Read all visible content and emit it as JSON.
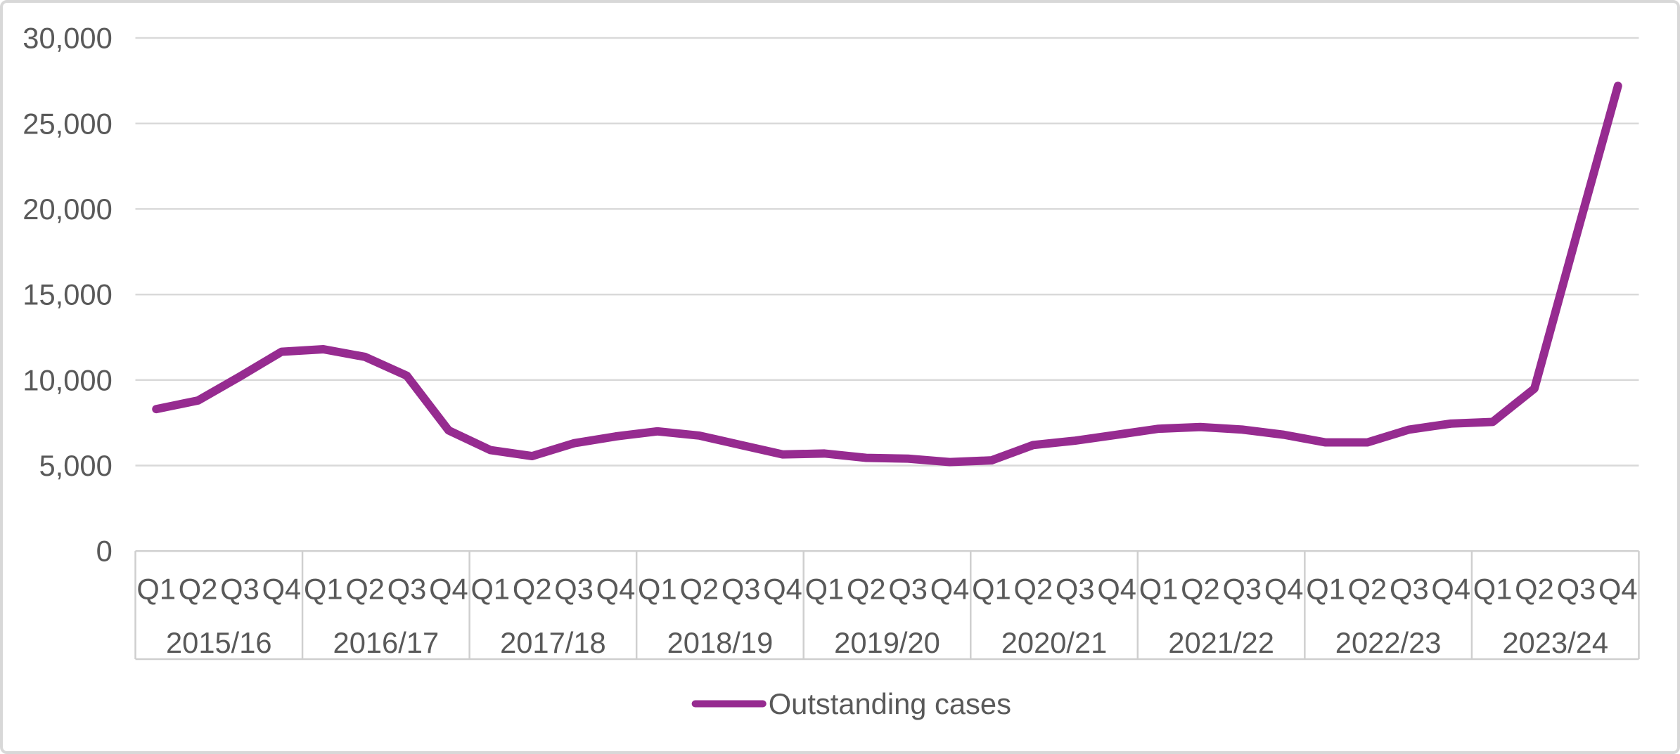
{
  "page": {
    "kind": "excel-style-line-chart-figure"
  },
  "colors": {
    "accent_purple": "#962B90",
    "axis_text": "#595959",
    "gridline": "#D9D9D9",
    "table_border": "#CFCFCF",
    "frame_border": "#D8D8D8",
    "background": "#FFFFFF"
  },
  "legend": {
    "label": "Outstanding cases"
  },
  "chart_data": {
    "type": "line",
    "title": "",
    "xlabel": "",
    "ylabel": "",
    "ylim": [
      0,
      30000
    ],
    "ytick_step": 5000,
    "ytick_labels": [
      "0",
      "5,000",
      "10,000",
      "15,000",
      "20,000",
      "25,000",
      "30,000"
    ],
    "grid": true,
    "legend_position": "bottom-center",
    "x_axis": {
      "quarter_labels": [
        "Q1",
        "Q2",
        "Q3",
        "Q4"
      ],
      "year_groups": [
        "2015/16",
        "2016/17",
        "2017/18",
        "2018/19",
        "2019/20",
        "2020/21",
        "2021/22",
        "2022/23",
        "2023/24"
      ]
    },
    "series": [
      {
        "name": "Outstanding cases",
        "color": "#962B90",
        "values_by_year": {
          "2015/16": [
            8300,
            8800,
            10200,
            11650
          ],
          "2016/17": [
            11800,
            11350,
            10250,
            7050
          ],
          "2017/18": [
            5900,
            5550,
            6300,
            6700
          ],
          "2018/19": [
            7000,
            6750,
            6200,
            5650
          ],
          "2019/20": [
            5700,
            5450,
            5400,
            5200
          ],
          "2020/21": [
            5300,
            6200,
            6450,
            6800
          ],
          "2021/22": [
            7150,
            7250,
            7100,
            6800
          ],
          "2022/23": [
            6350,
            6350,
            7100,
            7450
          ],
          "2023/24": [
            7550,
            9500,
            18400,
            27200
          ]
        },
        "values": [
          8300,
          8800,
          10200,
          11650,
          11800,
          11350,
          10250,
          7050,
          5900,
          5550,
          6300,
          6700,
          7000,
          6750,
          6200,
          5650,
          5700,
          5450,
          5400,
          5200,
          5300,
          6200,
          6450,
          6800,
          7150,
          7250,
          7100,
          6800,
          6350,
          6350,
          7100,
          7450,
          7550,
          9500,
          18400,
          27200
        ]
      }
    ]
  }
}
